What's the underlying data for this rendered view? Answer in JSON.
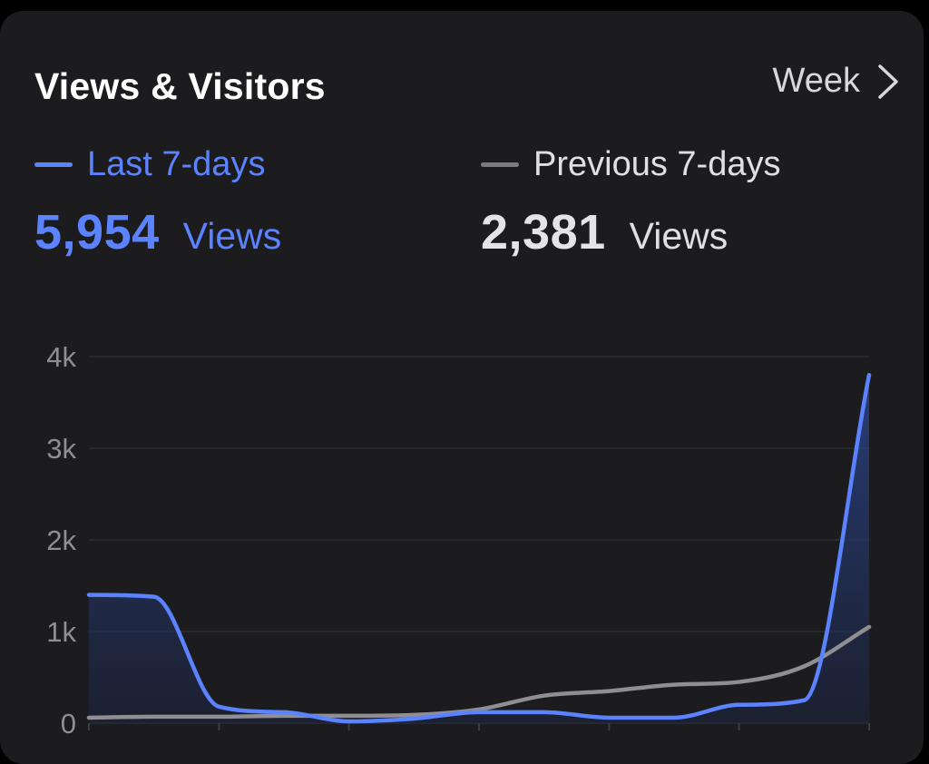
{
  "header": {
    "title": "Views & Visitors",
    "period_label": "Week"
  },
  "legend": {
    "current": {
      "label": "Last 7-days",
      "total": "5,954",
      "unit": "Views",
      "color": "#5b83ff"
    },
    "previous": {
      "label": "Previous 7-days",
      "total": "2,381",
      "unit": "Views",
      "color": "#8e8e93"
    }
  },
  "chart_data": {
    "type": "area",
    "title": "",
    "xlabel": "",
    "ylabel": "",
    "ylim": [
      0,
      4000
    ],
    "yticks": [
      "0",
      "1k",
      "2k",
      "3k",
      "4k"
    ],
    "y_tick_values": [
      0,
      1000,
      2000,
      3000,
      4000
    ],
    "grid": true,
    "x": [
      0,
      1,
      2,
      3,
      4,
      5,
      6,
      7,
      8,
      9,
      10,
      11,
      12
    ],
    "series": [
      {
        "name": "Last 7-days",
        "color": "#5b83ff",
        "fill": true,
        "values": [
          1400,
          1380,
          180,
          120,
          20,
          50,
          120,
          120,
          60,
          60,
          200,
          250,
          3800
        ]
      },
      {
        "name": "Previous 7-days",
        "color": "#8e8e93",
        "fill": false,
        "values": [
          60,
          70,
          70,
          80,
          80,
          90,
          150,
          300,
          350,
          420,
          450,
          620,
          1050
        ]
      }
    ]
  }
}
